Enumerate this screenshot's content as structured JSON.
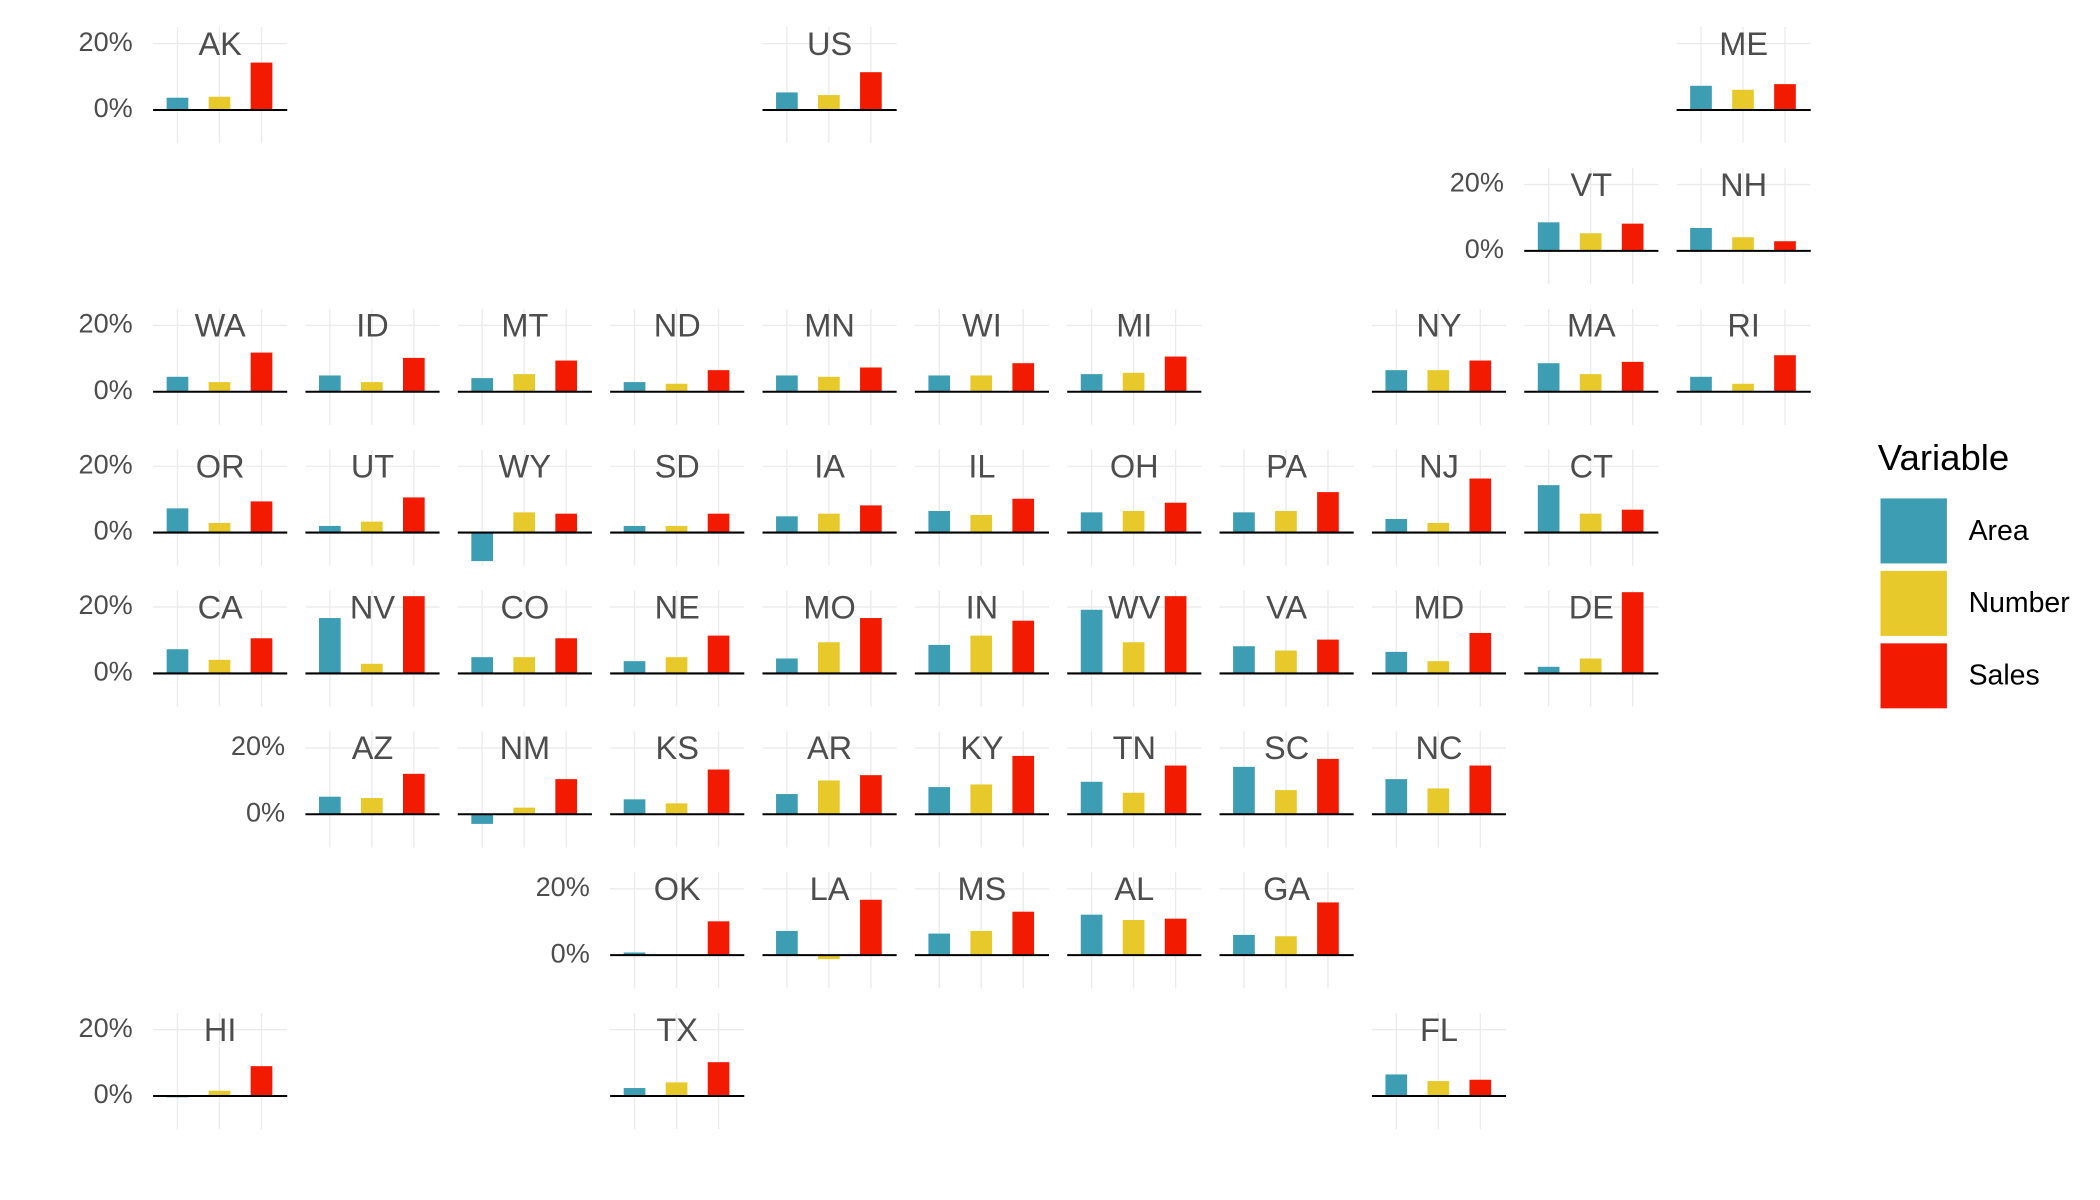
{
  "chart_data": {
    "type": "bar",
    "legend_title": "Variable",
    "series": [
      {
        "name": "Area",
        "color": "#3d9db3"
      },
      {
        "name": "Number",
        "color": "#e8c92b"
      },
      {
        "name": "Sales",
        "color": "#f21a00"
      }
    ],
    "ylim": [
      -10,
      25
    ],
    "yticks": [
      {
        "value": 20,
        "label": "20%"
      },
      {
        "value": 0,
        "label": "0%"
      }
    ],
    "grid": true,
    "panels": [
      {
        "title": "AK",
        "values": [
          3.7,
          4.0,
          14.3
        ]
      },
      {
        "title": "US",
        "values": [
          5.3,
          4.5,
          11.4
        ]
      },
      {
        "title": "ME",
        "values": [
          7.3,
          6.1,
          7.8
        ]
      },
      {
        "title": "VT",
        "values": [
          8.6,
          5.3,
          8.2
        ]
      },
      {
        "title": "NH",
        "values": [
          6.9,
          4.1,
          2.9
        ]
      },
      {
        "title": "WA",
        "values": [
          4.5,
          2.9,
          11.8
        ]
      },
      {
        "title": "ID",
        "values": [
          4.9,
          2.9,
          10.2
        ]
      },
      {
        "title": "MT",
        "values": [
          4.1,
          5.3,
          9.4
        ]
      },
      {
        "title": "ND",
        "values": [
          2.9,
          2.4,
          6.5
        ]
      },
      {
        "title": "MN",
        "values": [
          4.9,
          4.5,
          7.3
        ]
      },
      {
        "title": "WI",
        "values": [
          4.9,
          4.9,
          8.6
        ]
      },
      {
        "title": "MI",
        "values": [
          5.3,
          5.7,
          10.6
        ]
      },
      {
        "title": "NY",
        "values": [
          6.5,
          6.5,
          9.4
        ]
      },
      {
        "title": "MA",
        "values": [
          8.6,
          5.3,
          9.0
        ]
      },
      {
        "title": "RI",
        "values": [
          4.5,
          2.4,
          11.0
        ]
      },
      {
        "title": "OR",
        "values": [
          7.3,
          2.9,
          9.4
        ]
      },
      {
        "title": "UT",
        "values": [
          2.0,
          3.3,
          10.6
        ]
      },
      {
        "title": "WY",
        "values": [
          -8.6,
          6.1,
          5.7
        ]
      },
      {
        "title": "SD",
        "values": [
          2.0,
          2.0,
          5.7
        ]
      },
      {
        "title": "IA",
        "values": [
          4.9,
          5.7,
          8.2
        ]
      },
      {
        "title": "IL",
        "values": [
          6.5,
          5.3,
          10.2
        ]
      },
      {
        "title": "OH",
        "values": [
          6.1,
          6.5,
          9.0
        ]
      },
      {
        "title": "PA",
        "values": [
          6.1,
          6.5,
          12.2
        ]
      },
      {
        "title": "NJ",
        "values": [
          4.1,
          2.9,
          16.3
        ]
      },
      {
        "title": "CT",
        "values": [
          14.3,
          5.7,
          6.9
        ]
      },
      {
        "title": "CA",
        "values": [
          7.3,
          4.1,
          10.6
        ]
      },
      {
        "title": "NV",
        "values": [
          16.7,
          2.9,
          23.3
        ]
      },
      {
        "title": "CO",
        "values": [
          4.9,
          4.9,
          10.6
        ]
      },
      {
        "title": "NE",
        "values": [
          3.7,
          4.9,
          11.4
        ]
      },
      {
        "title": "MO",
        "values": [
          4.5,
          9.4,
          16.7
        ]
      },
      {
        "title": "IN",
        "values": [
          8.6,
          11.4,
          15.9
        ]
      },
      {
        "title": "WV",
        "values": [
          19.2,
          9.4,
          23.3
        ]
      },
      {
        "title": "VA",
        "values": [
          8.2,
          6.9,
          10.2
        ]
      },
      {
        "title": "MD",
        "values": [
          6.5,
          3.7,
          12.2
        ]
      },
      {
        "title": "DE",
        "values": [
          2.0,
          4.5,
          24.5
        ]
      },
      {
        "title": "AZ",
        "values": [
          5.3,
          4.9,
          12.2
        ]
      },
      {
        "title": "NM",
        "values": [
          -2.9,
          2.0,
          10.6
        ]
      },
      {
        "title": "KS",
        "values": [
          4.5,
          3.3,
          13.5
        ]
      },
      {
        "title": "AR",
        "values": [
          6.1,
          10.2,
          11.8
        ]
      },
      {
        "title": "KY",
        "values": [
          8.2,
          9.0,
          17.6
        ]
      },
      {
        "title": "TN",
        "values": [
          9.8,
          6.5,
          14.7
        ]
      },
      {
        "title": "SC",
        "values": [
          14.3,
          7.3,
          16.7
        ]
      },
      {
        "title": "NC",
        "values": [
          10.6,
          7.8,
          14.7
        ]
      },
      {
        "title": "OK",
        "values": [
          0.8,
          0,
          10.2
        ]
      },
      {
        "title": "LA",
        "values": [
          7.3,
          -1.2,
          16.7
        ]
      },
      {
        "title": "MS",
        "values": [
          6.5,
          7.3,
          13.1
        ]
      },
      {
        "title": "AL",
        "values": [
          12.2,
          10.6,
          11.0
        ]
      },
      {
        "title": "GA",
        "values": [
          6.1,
          5.7,
          15.9
        ]
      },
      {
        "title": "HI",
        "values": [
          -0.4,
          1.6,
          9.0
        ]
      },
      {
        "title": "TX",
        "values": [
          2.4,
          4.1,
          10.2
        ]
      },
      {
        "title": "FL",
        "values": [
          6.5,
          4.5,
          4.9
        ]
      }
    ]
  }
}
